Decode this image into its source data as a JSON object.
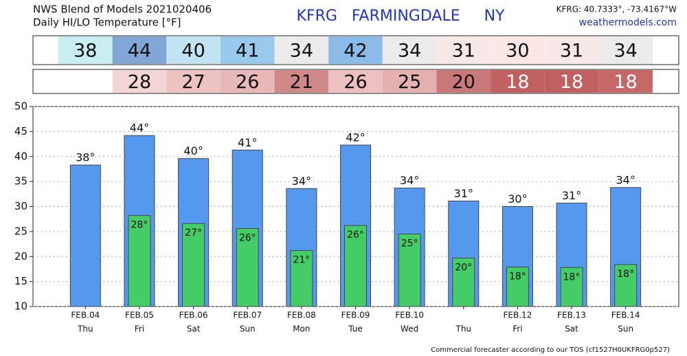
{
  "chart_data": {
    "type": "bar",
    "header_left": [
      "NWS Blend of Models 2021020406",
      "Daily HI/LO Temperature [°F]"
    ],
    "title": "KFRG   FARMINGDALE     NY",
    "header_right": [
      "KFRG: 40.7333°, -73.4167°W",
      "weathermodels.com"
    ],
    "footer": "Commercial forecaster according to our TOS (cf1527H0UKFRG0p527)",
    "categories": [
      "FEB.04",
      "FEB.05",
      "FEB.06",
      "FEB.07",
      "FEB.08",
      "FEB.09",
      "FEB.10",
      null,
      "FEB.12",
      "FEB.13",
      "FEB.14"
    ],
    "days": [
      "Thu",
      "Fri",
      "Sat",
      "Sun",
      "Mon",
      "Tue",
      "Wed",
      "Thu",
      "Fri",
      "Sat",
      "Sun"
    ],
    "table_rows": [
      {
        "values": [
          38,
          44,
          40,
          41,
          34,
          42,
          34,
          31,
          30,
          31,
          34
        ],
        "colors": [
          "#c8eef0",
          "#7fa6d4",
          "#c2e3f2",
          "#98c8ea",
          "#ebebeb",
          "#8bbbe8",
          "#ebebeb",
          "#f8e8e8",
          "#fde6e6",
          "#f8e8e8",
          "#ebebeb"
        ],
        "text_colors": [
          "#111",
          "#111",
          "#111",
          "#111",
          "#111",
          "#111",
          "#111",
          "#111",
          "#111",
          "#111",
          "#111"
        ]
      },
      {
        "values": [
          null,
          28,
          27,
          26,
          21,
          26,
          25,
          20,
          18,
          18,
          18
        ],
        "colors": [
          "#ffffff",
          "#f3d5d5",
          "#ecc2c2",
          "#e8b8b8",
          "#d08888",
          "#ecc0c0",
          "#e4b0b0",
          "#c87878",
          "#c06060",
          "#c06060",
          "#c66868"
        ],
        "text_colors": [
          "#111",
          "#111",
          "#111",
          "#111",
          "#111",
          "#111",
          "#111",
          "#111",
          "#ffffff",
          "#ffffff",
          "#ffffff"
        ]
      }
    ],
    "series": [
      {
        "name": "HI",
        "color": "#5599ee",
        "values": [
          38.3,
          44.2,
          39.6,
          41.3,
          33.6,
          42.3,
          33.7,
          31.1,
          30.0,
          30.7,
          33.8
        ],
        "value_labels": [
          "38°",
          "44°",
          "40°",
          "41°",
          "34°",
          "42°",
          "34°",
          "31°",
          "30°",
          "31°",
          "34°"
        ]
      },
      {
        "name": "LO",
        "color": "#44cc66",
        "values": [
          null,
          28.2,
          26.6,
          25.6,
          21.2,
          26.2,
          24.5,
          19.7,
          17.9,
          17.8,
          18.4
        ],
        "value_labels": [
          null,
          "28°",
          "27°",
          "26°",
          "21°",
          "26°",
          "25°",
          "20°",
          "18°",
          "18°",
          "18°"
        ]
      }
    ],
    "ylim": [
      10,
      50
    ],
    "yticks": [
      10,
      15,
      20,
      25,
      30,
      35,
      40,
      45,
      50
    ],
    "grid": true
  }
}
